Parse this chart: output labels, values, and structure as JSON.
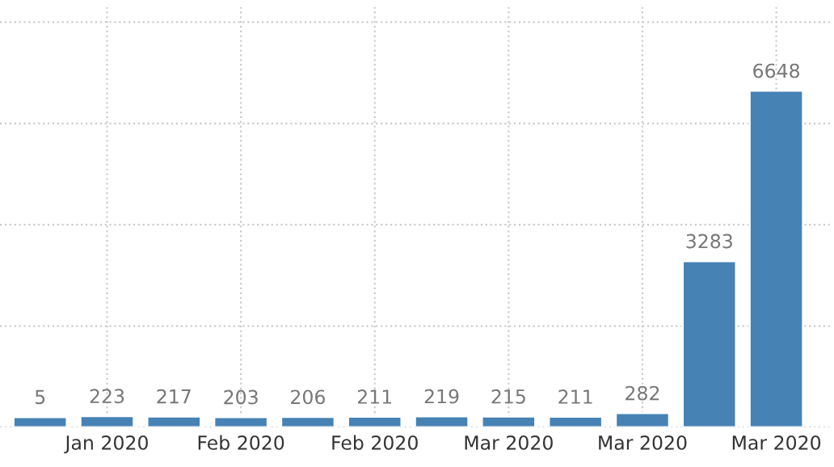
{
  "chart_data": {
    "type": "bar",
    "categories": [
      null,
      "Jan 2020",
      null,
      "Feb 2020",
      null,
      "Feb 2020",
      null,
      "Mar 2020",
      null,
      "Mar 2020",
      null,
      "Mar 2020"
    ],
    "values": [
      205,
      223,
      217,
      203,
      206,
      211,
      219,
      215,
      211,
      282,
      3283,
      6648
    ],
    "annotations": [
      "5"
    ],
    "value_labels": [
      null,
      "223",
      "217",
      "203",
      "206",
      "211",
      "219",
      "215",
      "211",
      "282",
      "3283",
      "6648"
    ],
    "color": "#4682b4",
    "ylim": [
      0,
      8300
    ],
    "yticks": [
      {
        "value": 0,
        "label": null
      },
      {
        "value": 2000,
        "label": null
      },
      {
        "value": 4000,
        "label": null
      },
      {
        "value": 6000,
        "label": null
      },
      {
        "value": 8000,
        "label": null
      }
    ],
    "grid": true
  }
}
